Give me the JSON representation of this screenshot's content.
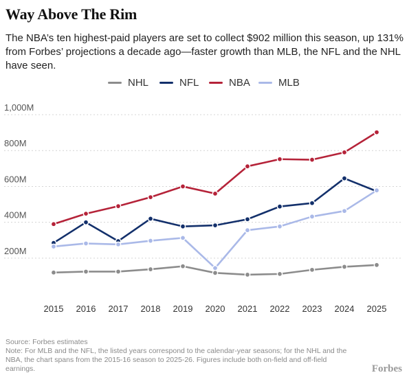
{
  "title": "Way Above The Rim",
  "subtitle": "The NBA’s ten highest-paid players are set to collect $902 million this season, up 131% from Forbes’ projections a decade ago—faster growth than MLB, the NFL and the NHL have seen.",
  "footnote": {
    "source": "Source: Forbes estimates",
    "note": "Note: For MLB and the NFL, the listed years correspond to the calendar-year seasons; for the NHL and the NBA, the chart spans from the 2015-16 season to 2025-26. Figures include both on-field and off-field earnings."
  },
  "brand": "Forbes",
  "chart_data": {
    "type": "line",
    "x": [
      2015,
      2016,
      2017,
      2018,
      2019,
      2020,
      2021,
      2022,
      2023,
      2024,
      2025
    ],
    "x_tick_labels": [
      "2015",
      "2016",
      "2017",
      "2018",
      "2019",
      "2020",
      "2021",
      "2022",
      "2023",
      "2024",
      "2025"
    ],
    "ylim": [
      100,
      1000
    ],
    "y_ticks": [
      200,
      400,
      600,
      800,
      1000
    ],
    "y_tick_labels": [
      "200M",
      "400M",
      "600M",
      "800M",
      "1,000M"
    ],
    "grid": "horizontal dotted",
    "legend_position": "top",
    "series": [
      {
        "name": "NHL",
        "color": "#8c8c8c",
        "values": [
          120,
          125,
          125,
          138,
          155,
          118,
          108,
          112,
          135,
          152,
          162
        ]
      },
      {
        "name": "NFL",
        "color": "#13306b",
        "values": [
          285,
          400,
          295,
          420,
          377,
          383,
          417,
          488,
          507,
          645,
          573
        ]
      },
      {
        "name": "NBA",
        "color": "#b52339",
        "values": [
          390,
          448,
          490,
          540,
          600,
          560,
          712,
          752,
          749,
          790,
          902
        ]
      },
      {
        "name": "MLB",
        "color": "#aab9e8",
        "values": [
          265,
          282,
          277,
          297,
          313,
          145,
          356,
          377,
          432,
          463,
          578
        ]
      }
    ]
  }
}
